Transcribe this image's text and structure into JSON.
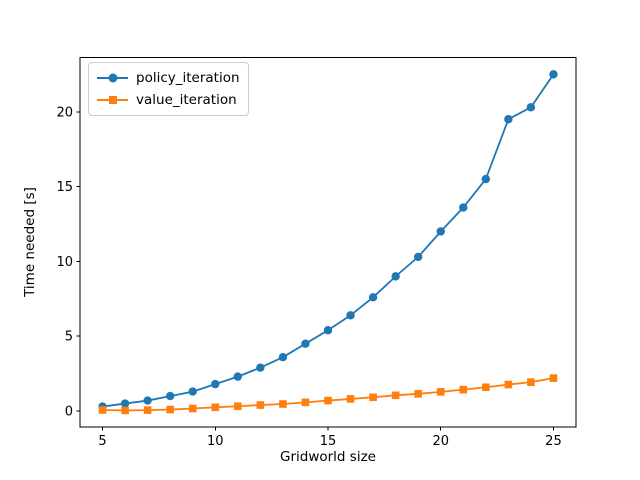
{
  "chart_data": {
    "type": "line",
    "title": "",
    "xlabel": "Gridworld size",
    "ylabel": "Time needed [s]",
    "x": [
      5,
      6,
      7,
      8,
      9,
      10,
      11,
      12,
      13,
      14,
      15,
      16,
      17,
      18,
      19,
      20,
      21,
      22,
      23,
      24,
      25
    ],
    "series": [
      {
        "name": "policy_iteration",
        "color": "#1f77b4",
        "marker": "circle",
        "values": [
          0.3,
          0.5,
          0.7,
          1.0,
          1.3,
          1.8,
          2.3,
          2.9,
          3.6,
          4.5,
          5.4,
          6.4,
          7.6,
          9.0,
          10.3,
          12.0,
          13.6,
          15.5,
          19.5,
          20.3,
          22.5
        ]
      },
      {
        "name": "value_iteration",
        "color": "#ff7f0e",
        "marker": "square",
        "values": [
          0.07,
          0.04,
          0.06,
          0.1,
          0.17,
          0.25,
          0.32,
          0.4,
          0.47,
          0.58,
          0.7,
          0.81,
          0.92,
          1.05,
          1.15,
          1.28,
          1.43,
          1.59,
          1.77,
          1.93,
          2.2
        ]
      }
    ],
    "xticks": [
      5,
      10,
      15,
      20,
      25
    ],
    "yticks": [
      0,
      5,
      10,
      15,
      20
    ],
    "xlim": [
      4,
      26
    ],
    "ylim": [
      -1.08,
      23.62
    ],
    "legend_position": "upper left",
    "grid": false,
    "background_color": "#ffffff",
    "axis_color": "#000000"
  }
}
